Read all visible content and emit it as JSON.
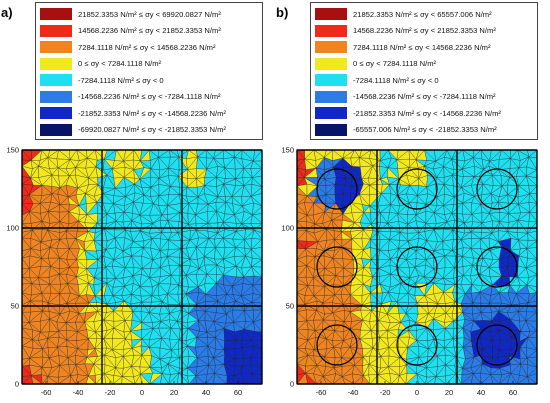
{
  "colors": {
    "c8": "#a80f0f",
    "c7": "#ee2a1a",
    "c6": "#ee8522",
    "c5": "#f2e81e",
    "c4": "#1fdff0",
    "c3": "#2a7ce8",
    "c2": "#1028c8",
    "c1": "#081468",
    "mesh_line": "#1a1a1a",
    "grid_line": "#000000"
  },
  "panels": [
    {
      "label": "a)",
      "legend": [
        {
          "text": "21852.3353 N/m² ≤ σy < 69920.0827 N/m²",
          "color": "c8"
        },
        {
          "text": "14568.2236 N/m² ≤ σy < 21852.3353 N/m²",
          "color": "c7"
        },
        {
          "text": "7284.1118 N/m² ≤ σy < 14568.2236 N/m²",
          "color": "c6"
        },
        {
          "text": "0 ≤ σy < 7284.1118 N/m²",
          "color": "c5"
        },
        {
          "text": "-7284.1118 N/m² ≤ σy < 0",
          "color": "c4"
        },
        {
          "text": "-14568.2236 N/m² ≤ σy < -7284.1118 N/m²",
          "color": "c3"
        },
        {
          "text": "-21852.3353 N/m² ≤ σy < -14568.2236 N/m²",
          "color": "c2"
        },
        {
          "text": "-69920.0827 N/m² ≤ σy < -21852.3353 N/m²",
          "color": "c1"
        }
      ],
      "has_circles": false
    },
    {
      "label": "b)",
      "legend": [
        {
          "text": "21852.3353 N/m² ≤ σy < 65557.006 N/m²",
          "color": "c8"
        },
        {
          "text": "14568.2236 N/m² ≤ σy < 21852.3353 N/m²",
          "color": "c7"
        },
        {
          "text": "7284.1118 N/m² ≤ σy < 14568.2236 N/m²",
          "color": "c6"
        },
        {
          "text": "0 ≤ σy < 7284.1118 N/m²",
          "color": "c5"
        },
        {
          "text": "-7284.1118 N/m² ≤ σy < 0",
          "color": "c4"
        },
        {
          "text": "-14568.2236 N/m² ≤ σy < -7284.1118 N/m²",
          "color": "c3"
        },
        {
          "text": "-21852.3353 N/m² ≤ σy < -14568.2236 N/m²",
          "color": "c2"
        },
        {
          "text": "-65557.006 N/m² ≤ σy < -21852.3353 N/m²",
          "color": "c1"
        }
      ],
      "has_circles": true
    }
  ],
  "axes": {
    "x_ticks": [
      "-60",
      "-40",
      "-20",
      "0",
      "20",
      "40",
      "60"
    ],
    "y_ticks": [
      "0",
      "50",
      "100",
      "150"
    ],
    "x_range": [
      -75,
      75
    ],
    "y_range": [
      0,
      150
    ]
  }
}
